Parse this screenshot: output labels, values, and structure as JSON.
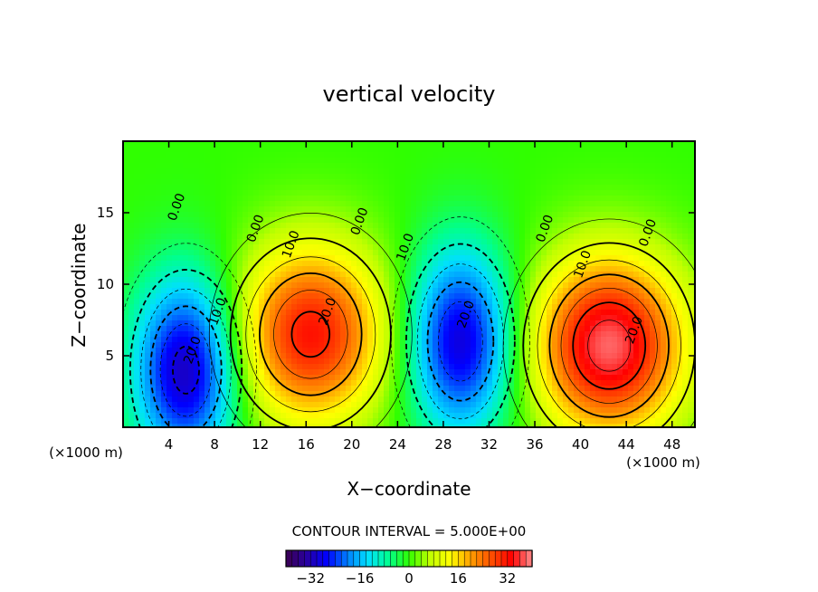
{
  "chart_data": {
    "type": "heatmap",
    "title": "vertical velocity",
    "xlabel": "X−coordinate",
    "ylabel": "Z−coordinate",
    "x_unit_left": "(×1000 m)",
    "x_unit_right": "(×1000 m)",
    "xlim": [
      0,
      50
    ],
    "ylim": [
      0,
      20
    ],
    "x_ticks": [
      4,
      8,
      12,
      16,
      20,
      24,
      28,
      32,
      36,
      40,
      44,
      48
    ],
    "y_ticks": [
      5,
      10,
      15
    ],
    "contour_interval_text": "CONTOUR INTERVAL = 5.000E+00",
    "contour_interval": 5,
    "contour_labels": [
      {
        "text": "0.00",
        "x": 5.0,
        "z": 15.3
      },
      {
        "text": "0.00",
        "x": 11.9,
        "z": 13.8
      },
      {
        "text": "0.00",
        "x": 21.0,
        "z": 14.3
      },
      {
        "text": "0.00",
        "x": 37.2,
        "z": 13.8
      },
      {
        "text": "0.00",
        "x": 46.2,
        "z": 13.5
      },
      {
        "text": "10.0",
        "x": 8.6,
        "z": 8.0
      },
      {
        "text": "20.0",
        "x": 6.4,
        "z": 5.3
      },
      {
        "text": "10.0",
        "x": 15.0,
        "z": 12.7
      },
      {
        "text": "20.0",
        "x": 18.2,
        "z": 8.0
      },
      {
        "text": "10.0",
        "x": 25.0,
        "z": 12.5
      },
      {
        "text": "20.0",
        "x": 30.3,
        "z": 7.8
      },
      {
        "text": "10.0",
        "x": 40.5,
        "z": 11.3
      },
      {
        "text": "20.0",
        "x": 45.0,
        "z": 6.7
      }
    ],
    "extrema": [
      {
        "kind": "max",
        "x": 16.4,
        "z": 6.5,
        "value": 32
      },
      {
        "kind": "min",
        "x": 5.5,
        "z": 4.0,
        "value": -32
      },
      {
        "kind": "min",
        "x": 29.5,
        "z": 6.0,
        "value": -30
      },
      {
        "kind": "max",
        "x": 42.5,
        "z": 5.7,
        "value": 38
      }
    ],
    "colorbar": {
      "ticks": [
        -32,
        -16,
        0,
        16,
        32
      ],
      "tick_labels": [
        "−32",
        "−16",
        "0",
        "16",
        "32"
      ],
      "range": [
        -40,
        40
      ],
      "colors": [
        "#3c0050",
        "#2800a0",
        "#0000ff",
        "#0080ff",
        "#00e0ff",
        "#00ff90",
        "#30ff00",
        "#c0ff00",
        "#ffff00",
        "#ffa000",
        "#ff5000",
        "#ff0000",
        "#ff9090"
      ]
    }
  }
}
